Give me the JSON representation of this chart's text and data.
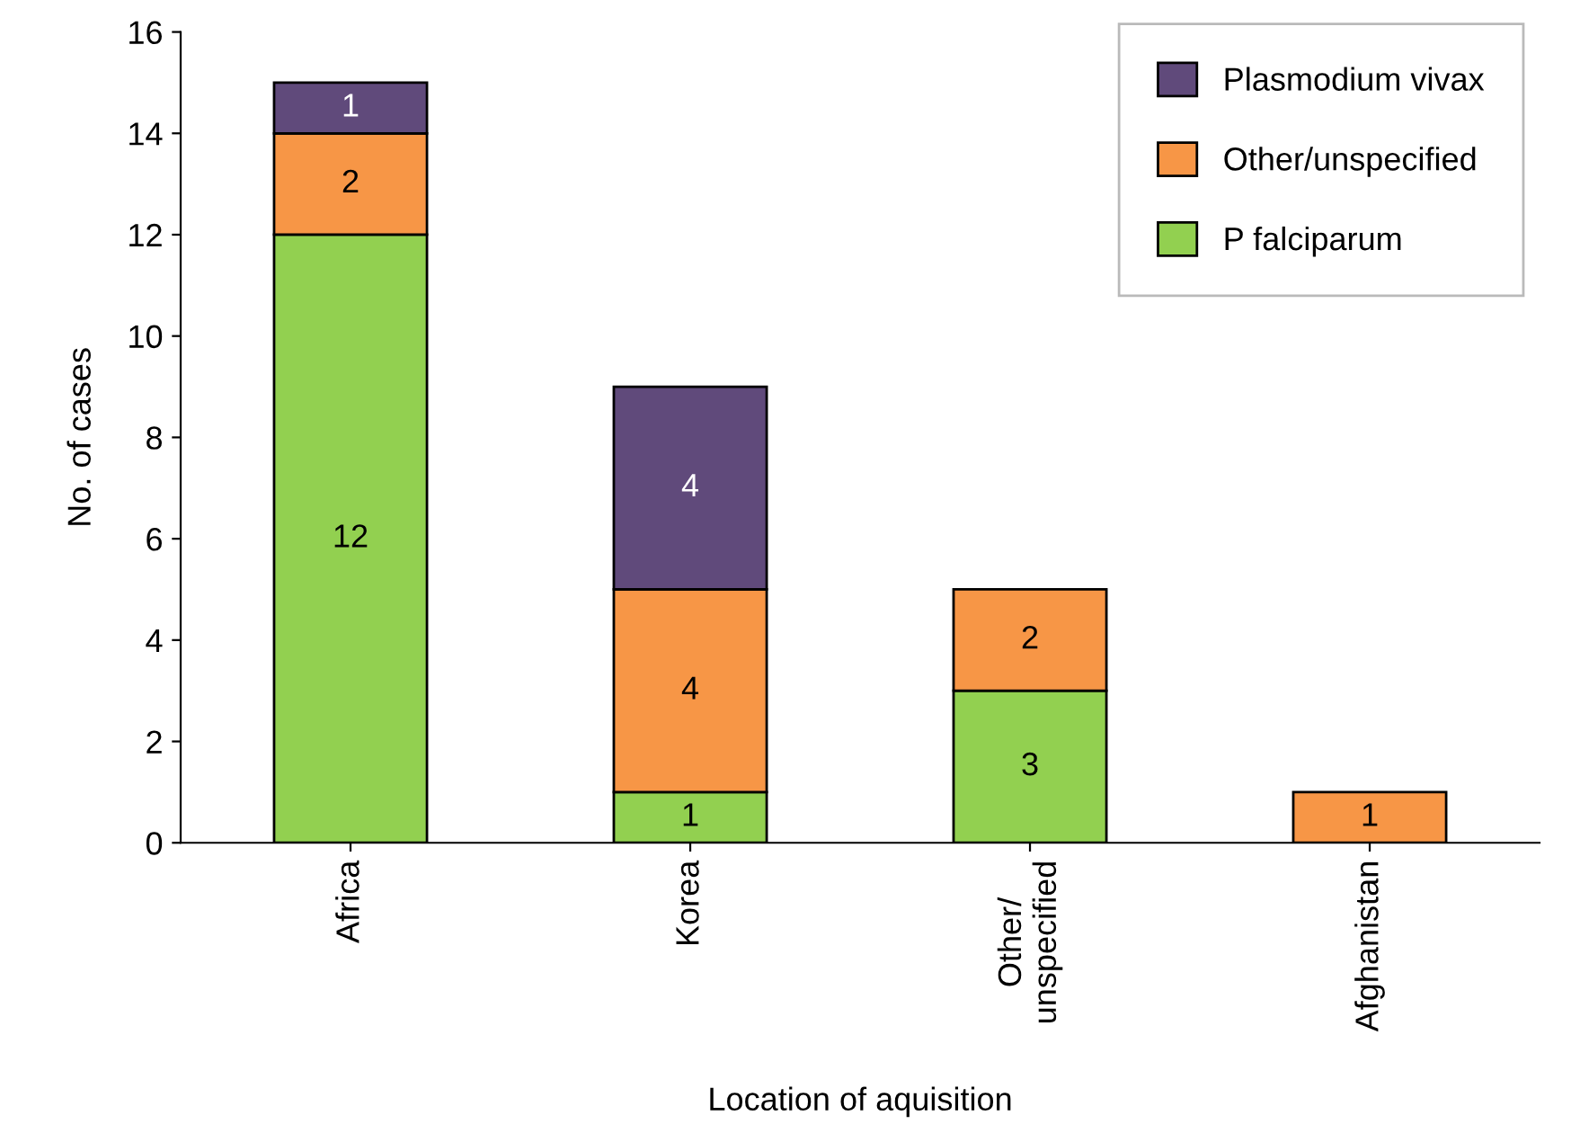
{
  "chart_data": {
    "type": "bar",
    "stacked": true,
    "xlabel": "Location of aquisition",
    "ylabel": "No. of cases",
    "categories": [
      "Africa",
      "Korea",
      "Other/\nunspecified",
      "Afghanistan"
    ],
    "series": [
      {
        "name": "P falciparum",
        "color": "#92d050",
        "values": [
          12,
          1,
          3,
          null
        ]
      },
      {
        "name": "Other/unspecified",
        "color": "#f79646",
        "values": [
          2,
          4,
          2,
          1
        ]
      },
      {
        "name": "Plasmodium vivax",
        "color": "#604a7b",
        "values": [
          1,
          4,
          null,
          null
        ]
      }
    ],
    "ylim": [
      0,
      16
    ],
    "yticks": [
      0,
      2,
      4,
      6,
      8,
      10,
      12,
      14,
      16
    ],
    "data_labels": true,
    "legend": "top right",
    "grid": false
  }
}
